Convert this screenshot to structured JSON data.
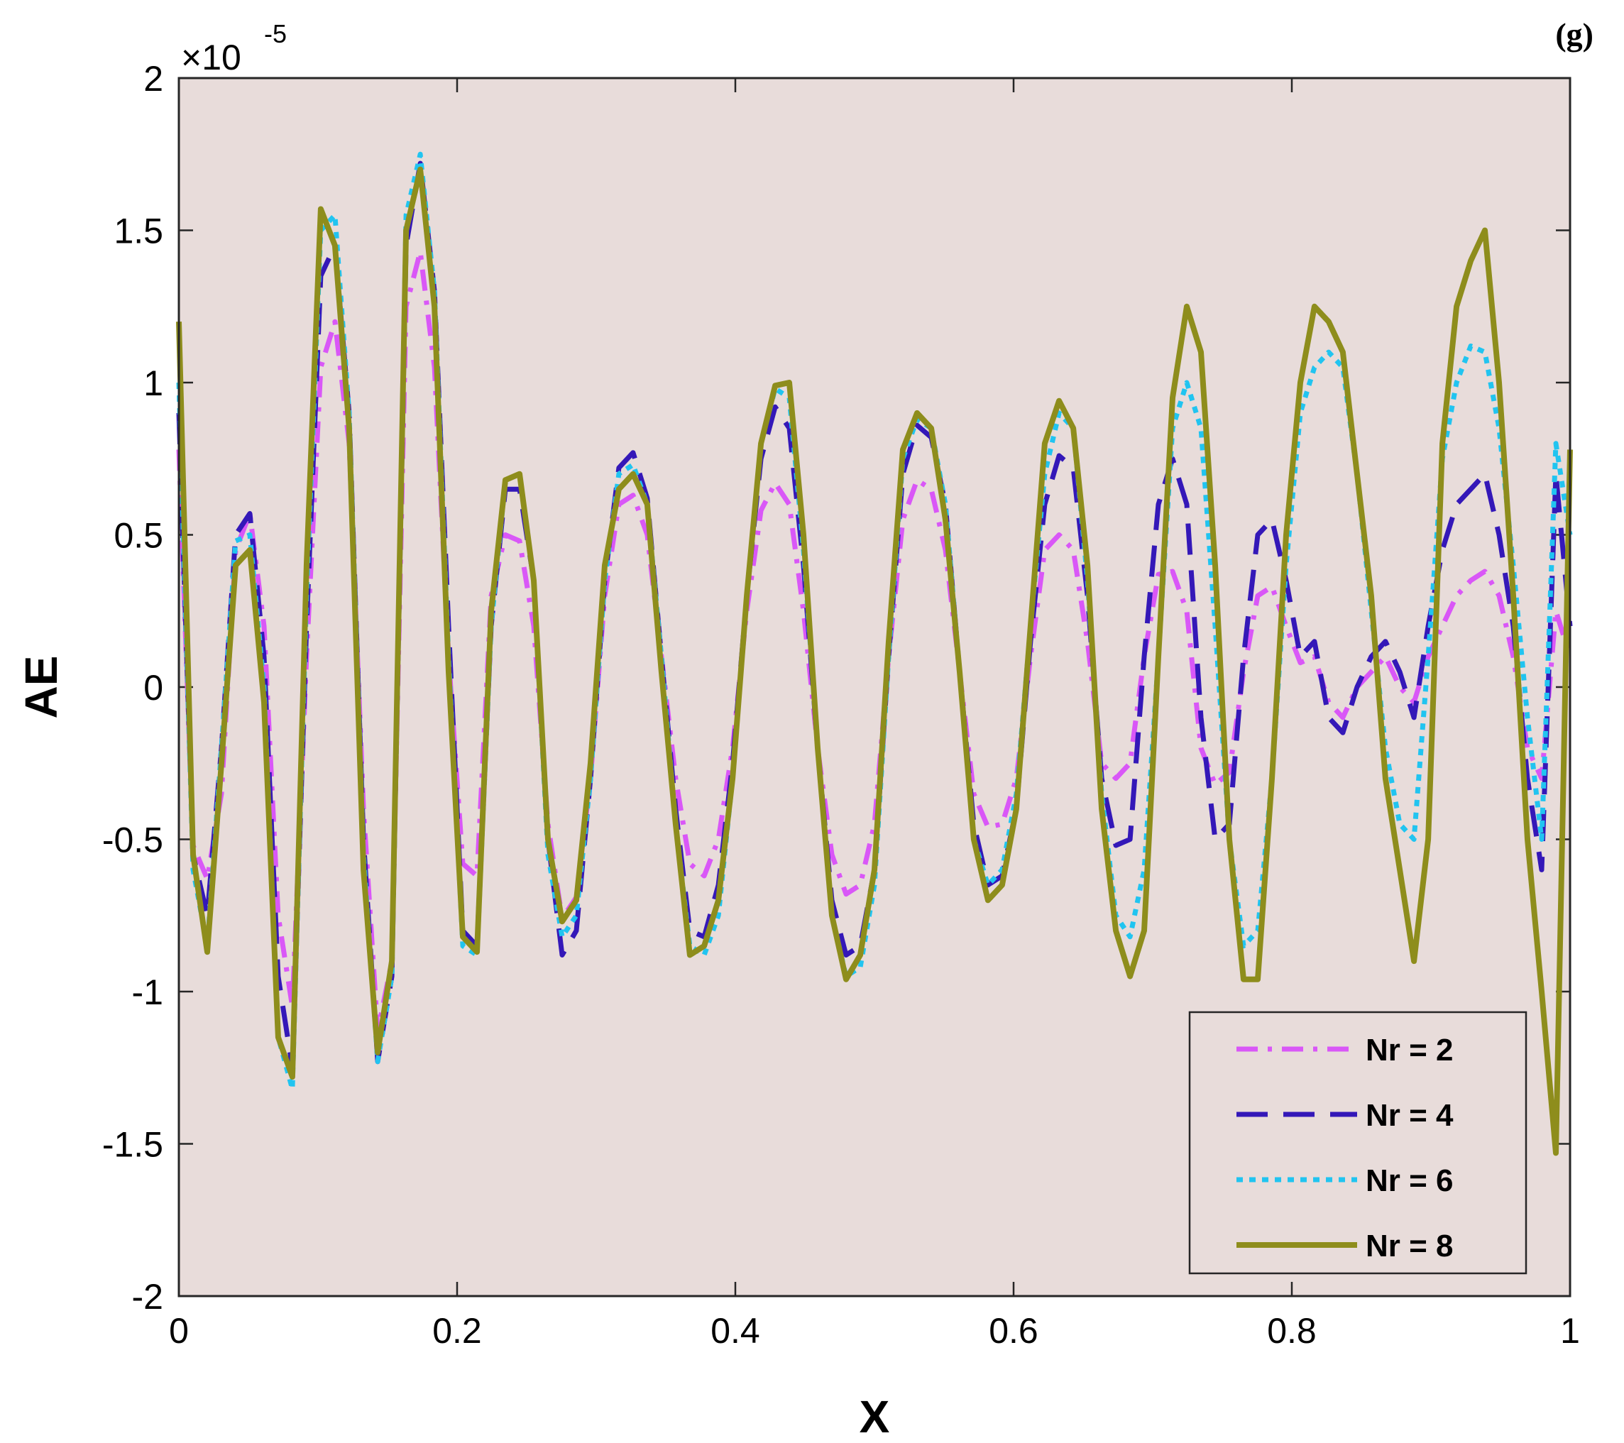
{
  "panel_label": "(g)",
  "exponent": {
    "prefix": "×10",
    "power": "-5"
  },
  "chart_data": {
    "type": "line",
    "xlabel": "X",
    "ylabel": "AE",
    "xlim": [
      0,
      1
    ],
    "ylim": [
      -2,
      2
    ],
    "y_scale_factor": "1e-5",
    "x_ticks": [
      "0",
      "0.2",
      "0.4",
      "0.6",
      "0.8",
      "1"
    ],
    "y_ticks": [
      "2",
      "1.5",
      "1",
      "0.5",
      "0",
      "-0.5",
      "-1",
      "-1.5",
      "-2"
    ],
    "grid": false,
    "legend_position": "bottom-right",
    "plot_background": "#e8dcda",
    "x": [
      0,
      0.0102,
      0.0204,
      0.0306,
      0.0408,
      0.051,
      0.0612,
      0.0714,
      0.0816,
      0.0918,
      0.102,
      0.1122,
      0.1224,
      0.1327,
      0.1429,
      0.1531,
      0.1633,
      0.1735,
      0.1837,
      0.1939,
      0.2041,
      0.2143,
      0.2245,
      0.2347,
      0.2449,
      0.2551,
      0.2653,
      0.2755,
      0.2857,
      0.2959,
      0.3061,
      0.3163,
      0.3265,
      0.3367,
      0.3469,
      0.3571,
      0.3673,
      0.3776,
      0.3878,
      0.398,
      0.4082,
      0.4184,
      0.4286,
      0.4388,
      0.449,
      0.4592,
      0.4694,
      0.4796,
      0.4898,
      0.5,
      0.5102,
      0.5204,
      0.5306,
      0.5408,
      0.551,
      0.5612,
      0.5714,
      0.5816,
      0.5918,
      0.602,
      0.6122,
      0.6224,
      0.6327,
      0.6429,
      0.6531,
      0.6633,
      0.6735,
      0.6837,
      0.6939,
      0.7041,
      0.7143,
      0.7245,
      0.7347,
      0.7449,
      0.7551,
      0.7653,
      0.7755,
      0.7857,
      0.7959,
      0.8061,
      0.8163,
      0.8265,
      0.8367,
      0.8469,
      0.8571,
      0.8673,
      0.8776,
      0.8878,
      0.898,
      0.9082,
      0.9184,
      0.9286,
      0.9388,
      0.949,
      0.9592,
      0.9694,
      0.9796,
      0.9898,
      1
    ],
    "series": [
      {
        "name": "Nr = 2",
        "color": "#d957f7",
        "dash": "dashdot",
        "values": [
          0.78,
          -0.52,
          -0.63,
          -0.35,
          0.45,
          0.57,
          0.2,
          -0.75,
          -1.05,
          0.1,
          1.05,
          1.2,
          0.8,
          -0.4,
          -1.13,
          -0.9,
          1.25,
          1.43,
          1.05,
          0.1,
          -0.58,
          -0.62,
          0.3,
          0.5,
          0.48,
          0.2,
          -0.45,
          -0.76,
          -0.69,
          -0.3,
          0.3,
          0.6,
          0.63,
          0.5,
          0.1,
          -0.3,
          -0.58,
          -0.62,
          -0.5,
          -0.2,
          0.25,
          0.58,
          0.67,
          0.6,
          0.25,
          -0.2,
          -0.55,
          -0.68,
          -0.65,
          -0.45,
          0.1,
          0.55,
          0.68,
          0.65,
          0.45,
          0.05,
          -0.35,
          -0.46,
          -0.45,
          -0.3,
          0.1,
          0.45,
          0.5,
          0.45,
          0.15,
          -0.25,
          -0.3,
          -0.25,
          0.1,
          0.37,
          0.38,
          0.25,
          -0.2,
          -0.32,
          -0.28,
          0.05,
          0.3,
          0.33,
          0.2,
          0.08,
          0.1,
          -0.05,
          -0.1,
          0.0,
          0.05,
          0.1,
          0.0,
          -0.05,
          0.1,
          0.2,
          0.3,
          0.35,
          0.38,
          0.3,
          0.1,
          -0.2,
          -0.3,
          0.25,
          0.1
        ]
      },
      {
        "name": "Nr = 4",
        "color": "#3418b8",
        "dash": "dashed",
        "values": [
          0.9,
          -0.55,
          -0.75,
          -0.2,
          0.5,
          0.57,
          0.1,
          -0.95,
          -1.25,
          0.2,
          1.35,
          1.45,
          0.9,
          -0.5,
          -1.23,
          -0.95,
          1.45,
          1.72,
          1.3,
          0.2,
          -0.8,
          -0.85,
          0.2,
          0.65,
          0.65,
          0.35,
          -0.5,
          -0.88,
          -0.8,
          -0.3,
          0.35,
          0.72,
          0.77,
          0.62,
          0.1,
          -0.4,
          -0.8,
          -0.82,
          -0.65,
          -0.25,
          0.3,
          0.75,
          0.92,
          0.85,
          0.4,
          -0.2,
          -0.7,
          -0.88,
          -0.85,
          -0.6,
          0.1,
          0.7,
          0.86,
          0.82,
          0.6,
          0.05,
          -0.45,
          -0.65,
          -0.62,
          -0.4,
          0.15,
          0.6,
          0.76,
          0.72,
          0.3,
          -0.3,
          -0.52,
          -0.5,
          0.1,
          0.6,
          0.75,
          0.6,
          -0.1,
          -0.5,
          -0.45,
          0.1,
          0.5,
          0.55,
          0.35,
          0.1,
          0.15,
          -0.1,
          -0.15,
          0.0,
          0.1,
          0.15,
          0.05,
          -0.1,
          0.2,
          0.45,
          0.6,
          0.65,
          0.7,
          0.5,
          0.2,
          -0.3,
          -0.6,
          0.7,
          0.2
        ]
      },
      {
        "name": "Nr = 6",
        "color": "#21c4f0",
        "dash": "dotted",
        "values": [
          1.0,
          -0.6,
          -0.85,
          -0.2,
          0.48,
          0.5,
          0.0,
          -1.15,
          -1.32,
          0.3,
          1.5,
          1.55,
          0.9,
          -0.55,
          -1.23,
          -0.95,
          1.55,
          1.75,
          1.3,
          0.1,
          -0.85,
          -0.88,
          0.2,
          0.68,
          0.7,
          0.35,
          -0.55,
          -0.82,
          -0.75,
          -0.3,
          0.35,
          0.7,
          0.73,
          0.6,
          0.1,
          -0.45,
          -0.85,
          -0.88,
          -0.75,
          -0.3,
          0.3,
          0.8,
          0.98,
          0.95,
          0.45,
          -0.2,
          -0.75,
          -0.95,
          -0.92,
          -0.65,
          0.1,
          0.75,
          0.88,
          0.85,
          0.6,
          0.05,
          -0.5,
          -0.65,
          -0.6,
          -0.35,
          0.2,
          0.7,
          0.9,
          0.85,
          0.35,
          -0.35,
          -0.75,
          -0.82,
          -0.6,
          0.1,
          0.85,
          1.0,
          0.85,
          0.2,
          -0.5,
          -0.85,
          -0.8,
          -0.3,
          0.4,
          0.9,
          1.05,
          1.1,
          1.05,
          0.7,
          0.25,
          -0.2,
          -0.45,
          -0.5,
          0.1,
          0.75,
          1.0,
          1.12,
          1.1,
          0.85,
          0.4,
          -0.1,
          -0.5,
          0.8,
          0.5
        ]
      },
      {
        "name": "Nr = 8",
        "color": "#8e8d1c",
        "dash": "solid",
        "values": [
          1.2,
          -0.55,
          -0.87,
          -0.25,
          0.4,
          0.45,
          -0.05,
          -1.15,
          -1.28,
          0.4,
          1.57,
          1.45,
          0.85,
          -0.6,
          -1.2,
          -0.9,
          1.5,
          1.7,
          1.25,
          0.05,
          -0.82,
          -0.87,
          0.25,
          0.68,
          0.7,
          0.35,
          -0.5,
          -0.77,
          -0.7,
          -0.25,
          0.4,
          0.65,
          0.7,
          0.6,
          0.05,
          -0.45,
          -0.88,
          -0.85,
          -0.7,
          -0.3,
          0.3,
          0.8,
          0.99,
          1.0,
          0.5,
          -0.2,
          -0.75,
          -0.96,
          -0.88,
          -0.6,
          0.15,
          0.78,
          0.9,
          0.85,
          0.55,
          0.05,
          -0.5,
          -0.7,
          -0.65,
          -0.4,
          0.2,
          0.8,
          0.94,
          0.85,
          0.4,
          -0.4,
          -0.8,
          -0.95,
          -0.8,
          0.1,
          0.95,
          1.25,
          1.1,
          0.4,
          -0.5,
          -0.96,
          -0.96,
          -0.3,
          0.5,
          1.0,
          1.25,
          1.2,
          1.1,
          0.7,
          0.3,
          -0.3,
          -0.6,
          -0.9,
          -0.5,
          0.8,
          1.25,
          1.4,
          1.5,
          1.0,
          0.3,
          -0.5,
          -1.0,
          -1.53,
          0.78
        ]
      }
    ]
  }
}
